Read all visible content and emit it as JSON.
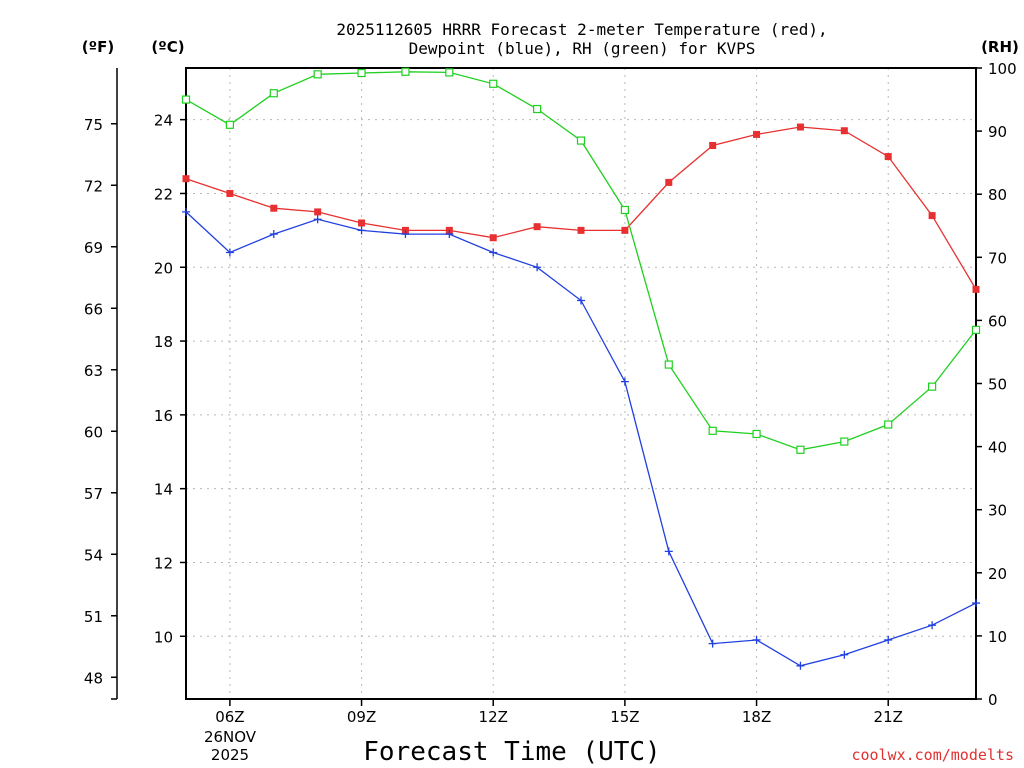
{
  "chart_data": {
    "type": "line",
    "title_line1": "2025112605 HRRR Forecast 2-meter Temperature (red),",
    "title_line2": "Dewpoint (blue), RH (green) for KVPS",
    "xlabel": "Forecast Time (UTC)",
    "credit": "coolwx.com/modelts",
    "date_label": [
      "26NOV",
      "2025"
    ],
    "units": {
      "fahrenheit": "(ºF)",
      "celsius": "(ºC)",
      "rh": "(RH)"
    },
    "x_hours": [
      5,
      6,
      7,
      8,
      9,
      10,
      11,
      12,
      13,
      14,
      15,
      16,
      17,
      18,
      19,
      20,
      21,
      22,
      23
    ],
    "xlim": [
      5,
      23
    ],
    "x_ticks": [
      {
        "hour": 6,
        "label": "06Z"
      },
      {
        "hour": 9,
        "label": "09Z"
      },
      {
        "hour": 12,
        "label": "12Z"
      },
      {
        "hour": 15,
        "label": "15Z"
      },
      {
        "hour": 18,
        "label": "18Z"
      },
      {
        "hour": 21,
        "label": "21Z"
      }
    ],
    "celsius_axis": {
      "lim": [
        8.3,
        25.4
      ],
      "ticks": [
        "10",
        "12",
        "14",
        "16",
        "18",
        "20",
        "22",
        "24"
      ]
    },
    "fahrenheit_axis": {
      "lim": [
        46.94,
        77.72
      ],
      "ticks": [
        "48",
        "51",
        "54",
        "57",
        "60",
        "63",
        "66",
        "69",
        "72",
        "75"
      ]
    },
    "rh_axis": {
      "lim": [
        0,
        100
      ],
      "ticks": [
        "0",
        "10",
        "20",
        "30",
        "40",
        "50",
        "60",
        "70",
        "80",
        "90",
        "100"
      ]
    },
    "series": [
      {
        "name": "Temperature",
        "unit": "C",
        "color": "#e83030",
        "marker": "filled-square",
        "values": [
          22.4,
          22.0,
          21.6,
          21.5,
          21.2,
          21.0,
          21.0,
          20.8,
          21.1,
          21.0,
          21.0,
          22.3,
          23.3,
          23.6,
          23.8,
          23.7,
          23.0,
          21.4,
          19.4
        ]
      },
      {
        "name": "Dewpoint",
        "unit": "C",
        "color": "#2040e0",
        "marker": "plus",
        "values": [
          21.5,
          20.4,
          20.9,
          21.3,
          21.0,
          20.9,
          20.9,
          20.4,
          20.0,
          19.1,
          16.9,
          12.3,
          9.8,
          9.9,
          9.2,
          9.5,
          9.9,
          10.3,
          10.9
        ]
      },
      {
        "name": "RH",
        "unit": "%",
        "color": "#20d020",
        "marker": "open-square",
        "values": [
          95,
          91,
          96,
          99,
          99.2,
          99.4,
          99.3,
          97.5,
          93.5,
          88.5,
          77.5,
          53,
          42.5,
          42,
          39.5,
          40.8,
          43.5,
          49.5,
          58.5
        ]
      }
    ]
  }
}
